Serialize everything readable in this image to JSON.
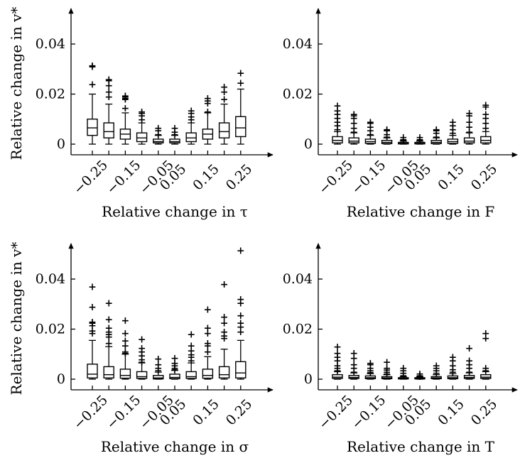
{
  "chart_data": [
    {
      "type": "box",
      "xlabel": "Relative change in τ",
      "ylabel": "Relative change in v*",
      "ylim": [
        0,
        0.052
      ],
      "yticks": [
        0,
        0.02,
        0.04
      ],
      "ytick_labels": [
        "0",
        "0.02",
        "0.04"
      ],
      "categories": [
        "−0.25",
        "",
        "−0.15",
        "",
        "−0.05",
        "0.05",
        "",
        "0.15",
        "",
        "0.25"
      ],
      "boxes": [
        {
          "whislo": 0,
          "q1": 0.0035,
          "med": 0.0065,
          "q3": 0.01,
          "whishi": 0.02,
          "fliers": [
            0.024,
            0.031,
            0.0315
          ]
        },
        {
          "whislo": 0,
          "q1": 0.0025,
          "med": 0.005,
          "q3": 0.0085,
          "whishi": 0.016,
          "fliers": [
            0.019,
            0.021,
            0.0235,
            0.0255,
            0.026
          ]
        },
        {
          "whislo": 0,
          "q1": 0.002,
          "med": 0.004,
          "q3": 0.006,
          "whishi": 0.0125,
          "fliers": [
            0.0145,
            0.018,
            0.0185,
            0.019,
            0.0195
          ]
        },
        {
          "whislo": 0,
          "q1": 0.001,
          "med": 0.0025,
          "q3": 0.0045,
          "whishi": 0.0085,
          "fliers": [
            0.01,
            0.0115,
            0.0125,
            0.013
          ]
        },
        {
          "whislo": 0,
          "q1": 0.0005,
          "med": 0.001,
          "q3": 0.002,
          "whishi": 0.0035,
          "fliers": [
            0.004,
            0.0055,
            0.0065
          ]
        },
        {
          "whislo": 0,
          "q1": 0.0005,
          "med": 0.001,
          "q3": 0.002,
          "whishi": 0.0035,
          "fliers": [
            0.004,
            0.005,
            0.0065
          ]
        },
        {
          "whislo": 0,
          "q1": 0.001,
          "med": 0.0025,
          "q3": 0.0045,
          "whishi": 0.0085,
          "fliers": [
            0.01,
            0.011,
            0.0125,
            0.0135
          ]
        },
        {
          "whislo": 0,
          "q1": 0.002,
          "med": 0.004,
          "q3": 0.006,
          "whishi": 0.0125,
          "fliers": [
            0.013,
            0.0165,
            0.0175,
            0.0185
          ]
        },
        {
          "whislo": 0,
          "q1": 0.0025,
          "med": 0.005,
          "q3": 0.0085,
          "whishi": 0.016,
          "fliers": [
            0.018,
            0.021,
            0.023
          ]
        },
        {
          "whislo": 0,
          "q1": 0.003,
          "med": 0.0065,
          "q3": 0.011,
          "whishi": 0.022,
          "fliers": [
            0.0245,
            0.0285
          ]
        }
      ]
    },
    {
      "type": "box",
      "xlabel": "Relative change in F",
      "ylabel": "",
      "ylim": [
        0,
        0.052
      ],
      "yticks": [
        0,
        0.02,
        0.04
      ],
      "ytick_labels": [
        "0",
        "0.02",
        "0.04"
      ],
      "categories": [
        "−0.25",
        "",
        "−0.15",
        "",
        "−0.05",
        "0.05",
        "",
        "0.15",
        "",
        "0.25"
      ],
      "boxes": [
        {
          "whislo": 0,
          "q1": 0.0005,
          "med": 0.0015,
          "q3": 0.003,
          "whishi": 0.005,
          "fliers": [
            0.006,
            0.0075,
            0.009,
            0.0105,
            0.012,
            0.0135,
            0.0155
          ]
        },
        {
          "whislo": 0,
          "q1": 0.0005,
          "med": 0.0012,
          "q3": 0.0025,
          "whishi": 0.0045,
          "fliers": [
            0.005,
            0.0065,
            0.0085,
            0.0105,
            0.0115,
            0.012
          ]
        },
        {
          "whislo": 0,
          "q1": 0.0003,
          "med": 0.001,
          "q3": 0.002,
          "whishi": 0.0035,
          "fliers": [
            0.004,
            0.0055,
            0.007,
            0.0085,
            0.009
          ]
        },
        {
          "whislo": 0,
          "q1": 0.0002,
          "med": 0.0007,
          "q3": 0.0015,
          "whishi": 0.0025,
          "fliers": [
            0.003,
            0.004,
            0.0055,
            0.006
          ]
        },
        {
          "whislo": 0,
          "q1": 0.0001,
          "med": 0.0003,
          "q3": 0.0007,
          "whishi": 0.0012,
          "fliers": [
            0.0015,
            0.002,
            0.0028
          ]
        },
        {
          "whislo": 0,
          "q1": 0.0001,
          "med": 0.0003,
          "q3": 0.0007,
          "whishi": 0.0012,
          "fliers": [
            0.0015,
            0.002,
            0.0028
          ]
        },
        {
          "whislo": 0,
          "q1": 0.0002,
          "med": 0.0007,
          "q3": 0.0015,
          "whishi": 0.0025,
          "fliers": [
            0.003,
            0.0045,
            0.0055,
            0.006
          ]
        },
        {
          "whislo": 0,
          "q1": 0.0003,
          "med": 0.001,
          "q3": 0.002,
          "whishi": 0.0035,
          "fliers": [
            0.0045,
            0.006,
            0.0075,
            0.009
          ]
        },
        {
          "whislo": 0,
          "q1": 0.0005,
          "med": 0.0012,
          "q3": 0.0025,
          "whishi": 0.0045,
          "fliers": [
            0.005,
            0.007,
            0.009,
            0.0115,
            0.0125
          ]
        },
        {
          "whislo": 0,
          "q1": 0.0005,
          "med": 0.0015,
          "q3": 0.003,
          "whishi": 0.005,
          "fliers": [
            0.0065,
            0.0085,
            0.0105,
            0.012,
            0.015,
            0.0158
          ]
        }
      ]
    },
    {
      "type": "box",
      "xlabel": "Relative change in σ",
      "ylabel": "Relative change in v*",
      "ylim": [
        0,
        0.052
      ],
      "yticks": [
        0,
        0.02,
        0.04
      ],
      "ytick_labels": [
        "0",
        "0.02",
        "0.04"
      ],
      "categories": [
        "−0.25",
        "",
        "−0.15",
        "",
        "−0.05",
        "0.05",
        "",
        "0.15",
        "",
        "0.25"
      ],
      "boxes": [
        {
          "whislo": 0,
          "q1": 0.0005,
          "med": 0.002,
          "q3": 0.006,
          "whishi": 0.0155,
          "fliers": [
            0.0185,
            0.0195,
            0.0215,
            0.0225,
            0.023,
            0.029,
            0.037
          ]
        },
        {
          "whislo": 0,
          "q1": 0.0005,
          "med": 0.0018,
          "q3": 0.005,
          "whishi": 0.013,
          "fliers": [
            0.0145,
            0.017,
            0.018,
            0.019,
            0.0205,
            0.024,
            0.0305
          ]
        },
        {
          "whislo": 0,
          "q1": 0.0004,
          "med": 0.0015,
          "q3": 0.004,
          "whishi": 0.01,
          "fliers": [
            0.0105,
            0.011,
            0.0135,
            0.0155,
            0.0185,
            0.0235
          ]
        },
        {
          "whislo": 0,
          "q1": 0.0003,
          "med": 0.001,
          "q3": 0.003,
          "whishi": 0.0065,
          "fliers": [
            0.007,
            0.008,
            0.0095,
            0.011,
            0.0125,
            0.016
          ]
        },
        {
          "whislo": 0,
          "q1": 0.0001,
          "med": 0.0005,
          "q3": 0.0015,
          "whishi": 0.0028,
          "fliers": [
            0.0035,
            0.0045,
            0.006,
            0.0082
          ]
        },
        {
          "whislo": 0,
          "q1": 0.0002,
          "med": 0.0007,
          "q3": 0.002,
          "whishi": 0.0035,
          "fliers": [
            0.004,
            0.0045,
            0.0055,
            0.0065,
            0.0085
          ]
        },
        {
          "whislo": 0,
          "q1": 0.0003,
          "med": 0.001,
          "q3": 0.003,
          "whishi": 0.0065,
          "fliers": [
            0.0075,
            0.009,
            0.01,
            0.0115,
            0.0135,
            0.018
          ]
        },
        {
          "whislo": 0,
          "q1": 0.0004,
          "med": 0.0015,
          "q3": 0.004,
          "whishi": 0.009,
          "fliers": [
            0.011,
            0.0135,
            0.0145,
            0.0185,
            0.0205,
            0.028
          ]
        },
        {
          "whislo": 0,
          "q1": 0.0005,
          "med": 0.0018,
          "q3": 0.005,
          "whishi": 0.012,
          "fliers": [
            0.0165,
            0.0175,
            0.019,
            0.0225,
            0.025,
            0.038
          ]
        },
        {
          "whislo": 0,
          "q1": 0.0005,
          "med": 0.0025,
          "q3": 0.007,
          "whishi": 0.0155,
          "fliers": [
            0.019,
            0.021,
            0.0225,
            0.0255,
            0.0305,
            0.032,
            0.0515
          ]
        }
      ]
    },
    {
      "type": "box",
      "xlabel": "Relative change in T",
      "ylabel": "",
      "ylim": [
        0,
        0.052
      ],
      "yticks": [
        0,
        0.02,
        0.04
      ],
      "ytick_labels": [
        "0",
        "0.02",
        "0.04"
      ],
      "categories": [
        "−0.25",
        "",
        "−0.15",
        "",
        "−0.05",
        "0.05",
        "",
        "0.15",
        "",
        "0.25"
      ],
      "boxes": [
        {
          "whislo": 0,
          "q1": 0.0003,
          "med": 0.0008,
          "q3": 0.0018,
          "whishi": 0.003,
          "fliers": [
            0.0035,
            0.0045,
            0.0055,
            0.0075,
            0.009,
            0.0105,
            0.013
          ]
        },
        {
          "whislo": 0,
          "q1": 0.0003,
          "med": 0.0007,
          "q3": 0.0015,
          "whishi": 0.0025,
          "fliers": [
            0.003,
            0.0045,
            0.006,
            0.0085,
            0.0105
          ]
        },
        {
          "whislo": 0,
          "q1": 0.0002,
          "med": 0.0006,
          "q3": 0.0013,
          "whishi": 0.0022,
          "fliers": [
            0.0028,
            0.0035,
            0.0045,
            0.006,
            0.0065
          ]
        },
        {
          "whislo": 0,
          "q1": 0.0002,
          "med": 0.0005,
          "q3": 0.001,
          "whishi": 0.0018,
          "fliers": [
            0.0022,
            0.003,
            0.0038,
            0.0045,
            0.007
          ]
        },
        {
          "whislo": 0,
          "q1": 0.0001,
          "med": 0.0003,
          "q3": 0.0006,
          "whishi": 0.001,
          "fliers": [
            0.0015,
            0.0025,
            0.0035,
            0.0045
          ]
        },
        {
          "whislo": 0,
          "q1": 0.0001,
          "med": 0.0003,
          "q3": 0.0006,
          "whishi": 0.001,
          "fliers": [
            0.0012,
            0.0015,
            0.0022
          ]
        },
        {
          "whislo": 0,
          "q1": 0.0002,
          "med": 0.0005,
          "q3": 0.001,
          "whishi": 0.0018,
          "fliers": [
            0.0025,
            0.0035,
            0.0045,
            0.0055
          ]
        },
        {
          "whislo": 0,
          "q1": 0.0002,
          "med": 0.0006,
          "q3": 0.0013,
          "whishi": 0.0022,
          "fliers": [
            0.003,
            0.004,
            0.0055,
            0.0075,
            0.009
          ]
        },
        {
          "whislo": 0,
          "q1": 0.0003,
          "med": 0.0007,
          "q3": 0.0015,
          "whishi": 0.0025,
          "fliers": [
            0.003,
            0.0045,
            0.006,
            0.0075,
            0.0125
          ]
        },
        {
          "whislo": 0,
          "q1": 0.0003,
          "med": 0.0008,
          "q3": 0.0018,
          "whishi": 0.003,
          "fliers": [
            0.0035,
            0.0045,
            0.0165,
            0.0185
          ]
        }
      ]
    }
  ]
}
